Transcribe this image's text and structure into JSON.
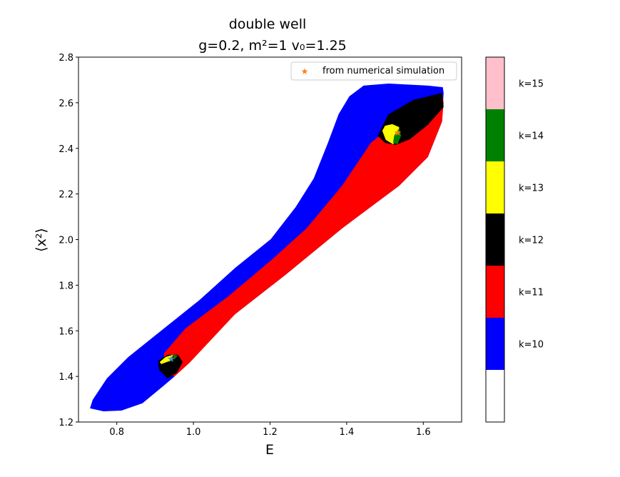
{
  "chart_data": {
    "type": "area",
    "title": "double well",
    "subtitle": "g=0.2, m²=1 v₀=1.25",
    "xlabel": "E",
    "ylabel": "⟨x²⟩",
    "xlim": [
      0.7,
      1.7
    ],
    "ylim": [
      1.2,
      2.8
    ],
    "xticks": [
      "0.8",
      "1.0",
      "1.2",
      "1.4",
      "1.6"
    ],
    "xtick_values": [
      0.8,
      1.0,
      1.2,
      1.4,
      1.6
    ],
    "yticks": [
      "1.2",
      "1.4",
      "1.6",
      "1.8",
      "2.0",
      "2.2",
      "2.4",
      "2.6",
      "2.8"
    ],
    "ytick_values": [
      1.2,
      1.4,
      1.6,
      1.8,
      2.0,
      2.2,
      2.4,
      2.6,
      2.8
    ],
    "grid": false,
    "legend": {
      "placement": "top-right",
      "entries": [
        {
          "label": "from numerical simulation",
          "marker": "star",
          "color": "#ff7f0e"
        }
      ]
    },
    "regions": [
      {
        "k": 10,
        "color": "#0000ff",
        "outline": [
          [
            0.73,
            1.26
          ],
          [
            0.765,
            1.247
          ],
          [
            0.812,
            1.25
          ],
          [
            0.867,
            1.282
          ],
          [
            0.923,
            1.36
          ],
          [
            0.951,
            1.4
          ],
          [
            0.979,
            1.469
          ],
          [
            1.109,
            1.673
          ],
          [
            1.24,
            1.845
          ],
          [
            1.388,
            2.049
          ],
          [
            1.537,
            2.236
          ],
          [
            1.612,
            2.362
          ],
          [
            1.649,
            2.518
          ],
          [
            1.653,
            2.643
          ],
          [
            1.651,
            2.668
          ],
          [
            1.612,
            2.675
          ],
          [
            1.509,
            2.684
          ],
          [
            1.444,
            2.675
          ],
          [
            1.407,
            2.628
          ],
          [
            1.379,
            2.55
          ],
          [
            1.351,
            2.424
          ],
          [
            1.314,
            2.268
          ],
          [
            1.267,
            2.143
          ],
          [
            1.202,
            2.002
          ],
          [
            1.109,
            1.876
          ],
          [
            1.016,
            1.735
          ],
          [
            0.923,
            1.61
          ],
          [
            0.83,
            1.485
          ],
          [
            0.774,
            1.391
          ],
          [
            0.737,
            1.297
          ]
        ]
      },
      {
        "k": 11,
        "color": "#ff0000",
        "outline": [
          [
            0.923,
            1.501
          ],
          [
            0.979,
            1.61
          ],
          [
            1.091,
            1.751
          ],
          [
            1.202,
            1.908
          ],
          [
            1.295,
            2.049
          ],
          [
            1.388,
            2.236
          ],
          [
            1.463,
            2.424
          ],
          [
            1.509,
            2.487
          ],
          [
            1.574,
            2.581
          ],
          [
            1.649,
            2.643
          ],
          [
            1.653,
            2.6
          ],
          [
            1.649,
            2.518
          ],
          [
            1.612,
            2.362
          ],
          [
            1.537,
            2.236
          ],
          [
            1.388,
            2.049
          ],
          [
            1.24,
            1.845
          ],
          [
            1.109,
            1.673
          ],
          [
            0.99,
            1.46
          ],
          [
            0.951,
            1.4
          ],
          [
            0.925,
            1.42
          ]
        ]
      },
      {
        "k": 12,
        "color": "#000000",
        "outline": [
          [
            1.481,
            2.456
          ],
          [
            1.509,
            2.549
          ],
          [
            1.574,
            2.612
          ],
          [
            1.649,
            2.643
          ],
          [
            1.653,
            2.581
          ],
          [
            1.612,
            2.503
          ],
          [
            1.565,
            2.44
          ],
          [
            1.528,
            2.415
          ],
          [
            1.5,
            2.424
          ]
        ]
      },
      {
        "k": 12,
        "color": "#000000",
        "outline": [
          [
            0.908,
            1.469
          ],
          [
            0.933,
            1.495
          ],
          [
            0.96,
            1.495
          ],
          [
            0.972,
            1.463
          ],
          [
            0.957,
            1.416
          ],
          [
            0.933,
            1.391
          ],
          [
            0.91,
            1.429
          ]
        ]
      },
      {
        "k": 13,
        "color": "#ffff00",
        "outline": [
          [
            1.493,
            2.477
          ],
          [
            1.5,
            2.499
          ],
          [
            1.519,
            2.506
          ],
          [
            1.537,
            2.493
          ],
          [
            1.537,
            2.44
          ],
          [
            1.521,
            2.418
          ],
          [
            1.502,
            2.437
          ]
        ]
      },
      {
        "k": 13,
        "color": "#ffff00",
        "outline": [
          [
            0.912,
            1.463
          ],
          [
            0.927,
            1.485
          ],
          [
            0.947,
            1.495
          ],
          [
            0.942,
            1.47
          ],
          [
            0.916,
            1.454
          ]
        ]
      },
      {
        "k": 14,
        "color": "#008000",
        "outline": [
          [
            1.524,
            2.456
          ],
          [
            1.537,
            2.487
          ],
          [
            1.542,
            2.456
          ],
          [
            1.533,
            2.418
          ],
          [
            1.521,
            2.424
          ]
        ]
      },
      {
        "k": 14,
        "color": "#008000",
        "outline": [
          [
            0.947,
            1.495
          ],
          [
            0.96,
            1.491
          ],
          [
            0.949,
            1.473
          ]
        ]
      }
    ],
    "points": [
      {
        "x": 0.942,
        "y": 1.479,
        "color": "#4a90c0"
      },
      {
        "x": 1.533,
        "y": 2.471,
        "color": "#ff7f0e"
      }
    ],
    "colorbar": {
      "segments": [
        {
          "label": "",
          "color": "#ffffff"
        },
        {
          "label": "k=10",
          "color": "#0000ff"
        },
        {
          "label": "k=11",
          "color": "#ff0000"
        },
        {
          "label": "k=12",
          "color": "#000000"
        },
        {
          "label": "k=13",
          "color": "#ffff00"
        },
        {
          "label": "k=14",
          "color": "#008000"
        },
        {
          "label": "k=15",
          "color": "#ffc0cb"
        }
      ]
    }
  }
}
